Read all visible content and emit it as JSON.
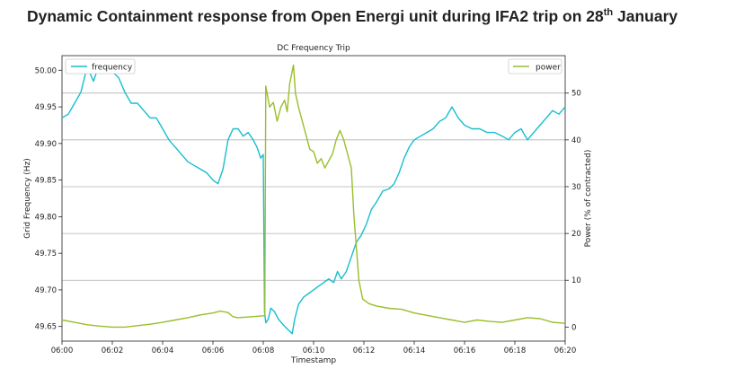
{
  "page": {
    "title_main": "Dynamic Containment response from Open Energi unit during IFA2 trip on 28",
    "title_sup": "th",
    "title_end": " January"
  },
  "chart_data": {
    "type": "line",
    "title": "DC Frequency Trip",
    "xlabel": "Timestamp",
    "ylabel_left": "Grid Frequency (Hz)",
    "ylabel_right": "Power (% of contracted)",
    "xlim_minutes": [
      0,
      20
    ],
    "ylim_left": [
      49.63,
      50.02
    ],
    "ylim_right": [
      -3,
      58
    ],
    "x_ticks": [
      {
        "m": 0,
        "label": "06:00"
      },
      {
        "m": 2,
        "label": "06:02"
      },
      {
        "m": 4,
        "label": "06:04"
      },
      {
        "m": 6,
        "label": "06:06"
      },
      {
        "m": 8,
        "label": "06:08"
      },
      {
        "m": 10,
        "label": "06:10"
      },
      {
        "m": 12,
        "label": "06:12"
      },
      {
        "m": 14,
        "label": "06:14"
      },
      {
        "m": 16,
        "label": "06:16"
      },
      {
        "m": 18,
        "label": "06:18"
      },
      {
        "m": 20,
        "label": "06:20"
      }
    ],
    "y_ticks_left": [
      {
        "v": 49.65,
        "label": "49.65"
      },
      {
        "v": 49.7,
        "label": "49.70"
      },
      {
        "v": 49.75,
        "label": "49.75"
      },
      {
        "v": 49.8,
        "label": "49.80"
      },
      {
        "v": 49.85,
        "label": "49.85"
      },
      {
        "v": 49.9,
        "label": "49.90"
      },
      {
        "v": 49.95,
        "label": "49.95"
      },
      {
        "v": 50.0,
        "label": "50.00"
      }
    ],
    "y_ticks_right": [
      {
        "v": 0,
        "label": "0"
      },
      {
        "v": 10,
        "label": "10"
      },
      {
        "v": 20,
        "label": "20"
      },
      {
        "v": 30,
        "label": "30"
      },
      {
        "v": 40,
        "label": "40"
      },
      {
        "v": 50,
        "label": "50"
      }
    ],
    "grid_right": [
      10,
      20,
      30,
      40,
      50
    ],
    "legend": [
      {
        "label": "frequency",
        "color": "#17becf",
        "position": "top-left"
      },
      {
        "label": "power",
        "color": "#9abd2c",
        "position": "top-right"
      }
    ],
    "series": [
      {
        "name": "frequency",
        "axis": "left",
        "color": "#17becf",
        "points": [
          [
            0,
            49.935
          ],
          [
            0.25,
            49.94
          ],
          [
            0.5,
            49.955
          ],
          [
            0.75,
            49.97
          ],
          [
            1.0,
            50.005
          ],
          [
            1.25,
            49.985
          ],
          [
            1.5,
            50.01
          ],
          [
            1.75,
            50.0
          ],
          [
            2.0,
            49.998
          ],
          [
            2.25,
            49.99
          ],
          [
            2.5,
            49.97
          ],
          [
            2.75,
            49.955
          ],
          [
            3.0,
            49.955
          ],
          [
            3.25,
            49.945
          ],
          [
            3.5,
            49.935
          ],
          [
            3.75,
            49.935
          ],
          [
            4.0,
            49.92
          ],
          [
            4.25,
            49.905
          ],
          [
            4.5,
            49.895
          ],
          [
            4.75,
            49.885
          ],
          [
            5.0,
            49.875
          ],
          [
            5.25,
            49.87
          ],
          [
            5.5,
            49.865
          ],
          [
            5.75,
            49.86
          ],
          [
            6.0,
            49.85
          ],
          [
            6.2,
            49.845
          ],
          [
            6.4,
            49.865
          ],
          [
            6.6,
            49.905
          ],
          [
            6.8,
            49.92
          ],
          [
            7.0,
            49.92
          ],
          [
            7.2,
            49.91
          ],
          [
            7.4,
            49.915
          ],
          [
            7.6,
            49.905
          ],
          [
            7.75,
            49.895
          ],
          [
            7.9,
            49.88
          ],
          [
            8.0,
            49.885
          ],
          [
            8.05,
            49.67
          ],
          [
            8.1,
            49.655
          ],
          [
            8.2,
            49.66
          ],
          [
            8.3,
            49.675
          ],
          [
            8.45,
            49.67
          ],
          [
            8.6,
            49.66
          ],
          [
            8.8,
            49.652
          ],
          [
            9.0,
            49.645
          ],
          [
            9.15,
            49.64
          ],
          [
            9.25,
            49.66
          ],
          [
            9.4,
            49.68
          ],
          [
            9.6,
            49.69
          ],
          [
            9.8,
            49.695
          ],
          [
            10.0,
            49.7
          ],
          [
            10.2,
            49.705
          ],
          [
            10.4,
            49.71
          ],
          [
            10.6,
            49.715
          ],
          [
            10.8,
            49.71
          ],
          [
            10.95,
            49.725
          ],
          [
            11.1,
            49.715
          ],
          [
            11.3,
            49.725
          ],
          [
            11.5,
            49.745
          ],
          [
            11.7,
            49.765
          ],
          [
            11.9,
            49.775
          ],
          [
            12.1,
            49.79
          ],
          [
            12.3,
            49.81
          ],
          [
            12.5,
            49.82
          ],
          [
            12.75,
            49.835
          ],
          [
            13.0,
            49.838
          ],
          [
            13.2,
            49.845
          ],
          [
            13.4,
            49.86
          ],
          [
            13.6,
            49.88
          ],
          [
            13.8,
            49.895
          ],
          [
            14.0,
            49.905
          ],
          [
            14.25,
            49.91
          ],
          [
            14.5,
            49.915
          ],
          [
            14.75,
            49.92
          ],
          [
            15.0,
            49.93
          ],
          [
            15.25,
            49.935
          ],
          [
            15.5,
            49.95
          ],
          [
            15.75,
            49.935
          ],
          [
            16.0,
            49.925
          ],
          [
            16.3,
            49.92
          ],
          [
            16.6,
            49.92
          ],
          [
            16.9,
            49.915
          ],
          [
            17.2,
            49.915
          ],
          [
            17.5,
            49.91
          ],
          [
            17.75,
            49.905
          ],
          [
            18.0,
            49.915
          ],
          [
            18.25,
            49.92
          ],
          [
            18.5,
            49.905
          ],
          [
            18.75,
            49.915
          ],
          [
            19.0,
            49.925
          ],
          [
            19.25,
            49.935
          ],
          [
            19.5,
            49.945
          ],
          [
            19.75,
            49.94
          ],
          [
            20.0,
            49.95
          ]
        ]
      },
      {
        "name": "power",
        "axis": "right",
        "color": "#9abd2c",
        "points": [
          [
            0,
            1.5
          ],
          [
            0.5,
            1.0
          ],
          [
            1.0,
            0.5
          ],
          [
            1.5,
            0.2
          ],
          [
            2.0,
            0.0
          ],
          [
            2.5,
            0.0
          ],
          [
            3.0,
            0.3
          ],
          [
            3.5,
            0.6
          ],
          [
            4.0,
            1.0
          ],
          [
            4.5,
            1.5
          ],
          [
            5.0,
            2.0
          ],
          [
            5.5,
            2.6
          ],
          [
            6.0,
            3.0
          ],
          [
            6.3,
            3.4
          ],
          [
            6.6,
            3.1
          ],
          [
            6.8,
            2.2
          ],
          [
            7.0,
            2.0
          ],
          [
            7.5,
            2.2
          ],
          [
            8.0,
            2.4
          ],
          [
            8.06,
            2.6
          ],
          [
            8.1,
            51.5
          ],
          [
            8.25,
            47.0
          ],
          [
            8.4,
            48.0
          ],
          [
            8.55,
            44.0
          ],
          [
            8.7,
            47.0
          ],
          [
            8.85,
            48.5
          ],
          [
            8.95,
            46.0
          ],
          [
            9.05,
            52.0
          ],
          [
            9.2,
            56.0
          ],
          [
            9.28,
            50.0
          ],
          [
            9.4,
            47.0
          ],
          [
            9.55,
            44.0
          ],
          [
            9.7,
            41.0
          ],
          [
            9.85,
            38.0
          ],
          [
            10.0,
            37.5
          ],
          [
            10.15,
            35.0
          ],
          [
            10.3,
            36.0
          ],
          [
            10.45,
            34.0
          ],
          [
            10.6,
            35.5
          ],
          [
            10.75,
            37.0
          ],
          [
            10.9,
            40.0
          ],
          [
            11.05,
            42.0
          ],
          [
            11.2,
            40.0
          ],
          [
            11.35,
            37.0
          ],
          [
            11.5,
            34.0
          ],
          [
            11.6,
            24.0
          ],
          [
            11.7,
            17.0
          ],
          [
            11.8,
            10.0
          ],
          [
            11.95,
            6.0
          ],
          [
            12.2,
            5.0
          ],
          [
            12.5,
            4.5
          ],
          [
            13.0,
            4.0
          ],
          [
            13.5,
            3.8
          ],
          [
            14.0,
            3.0
          ],
          [
            14.5,
            2.5
          ],
          [
            15.0,
            2.0
          ],
          [
            15.5,
            1.5
          ],
          [
            16.0,
            1.0
          ],
          [
            16.5,
            1.5
          ],
          [
            17.0,
            1.2
          ],
          [
            17.5,
            1.0
          ],
          [
            18.0,
            1.5
          ],
          [
            18.5,
            2.0
          ],
          [
            19.0,
            1.8
          ],
          [
            19.5,
            1.0
          ],
          [
            20.0,
            0.8
          ]
        ]
      }
    ]
  }
}
